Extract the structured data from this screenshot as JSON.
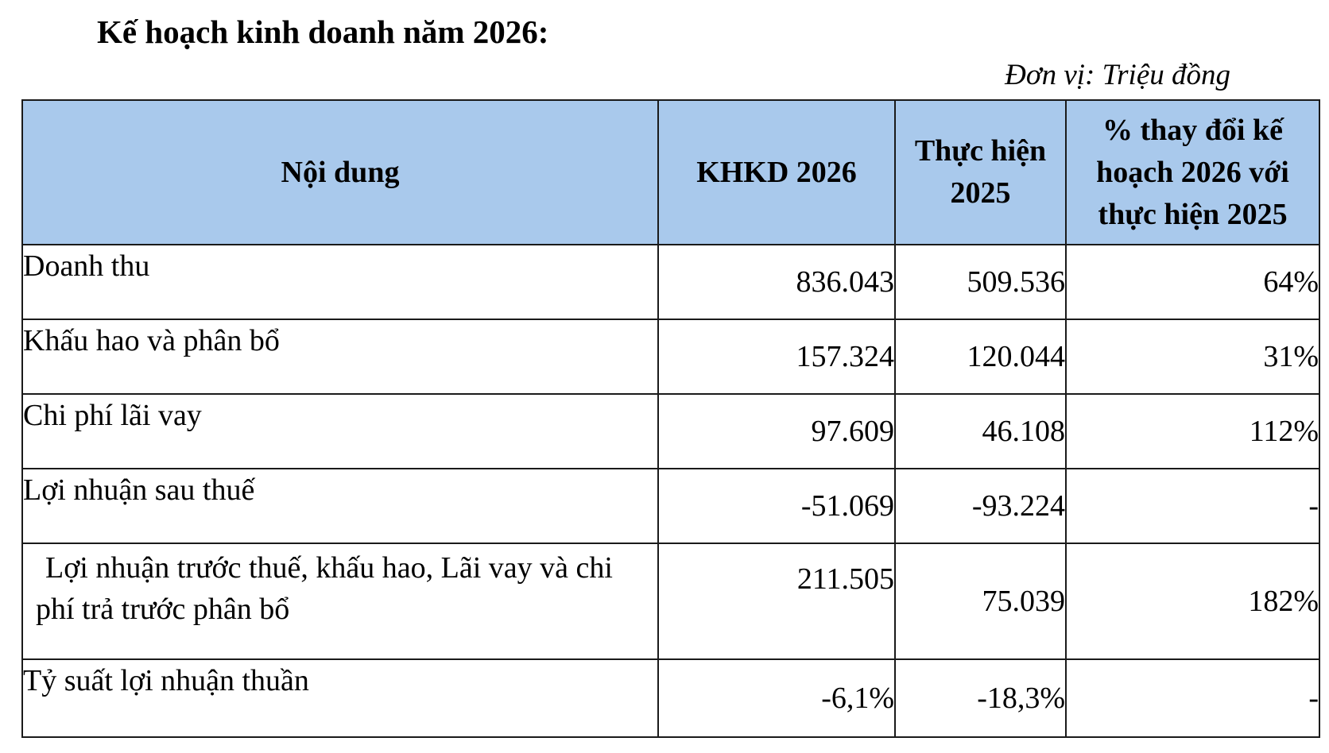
{
  "document": {
    "title": "Kế hoạch kinh doanh năm 2026:",
    "unit_note": "Đơn vị: Triệu đồng"
  },
  "table": {
    "headers": [
      "Nội dung",
      "KHKD 2026",
      "Thực hiện 2025",
      "% thay đổi kế hoạch 2026 với thực hiện 2025"
    ],
    "rows": [
      [
        "Doanh thu",
        "836.043",
        "509.536",
        "64%"
      ],
      [
        "Khấu hao và phân bổ",
        "157.324",
        "120.044",
        "31%"
      ],
      [
        "Chi phí lãi vay",
        "97.609",
        "46.108",
        "112%"
      ],
      [
        "Lợi nhuận sau thuế",
        "-51.069",
        "-93.224",
        "-"
      ],
      [
        "Lợi nhuận trước thuế, khấu hao, Lãi vay và chi phí trả trước phân bổ",
        "211.505",
        "75.039",
        "182%"
      ],
      [
        "Tỷ suất lợi nhuận thuần",
        "-6,1%",
        "-18,3%",
        "-"
      ]
    ]
  }
}
